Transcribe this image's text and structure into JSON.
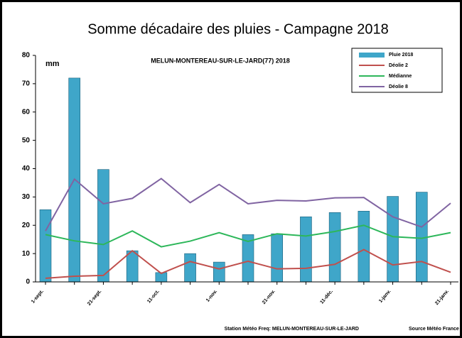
{
  "chart_data": {
    "type": "bar",
    "title": "Somme décadaire des pluies - Campagne 2018",
    "subtitle": "MELUN-MONTEREAU-SUR-LE-JARD(77) 2018",
    "y_unit": "mm",
    "footer_station": "Station Météo Freq: MELUN-MONTEREAU-SUR-LE-JARD",
    "footer_source": "Source Météo France",
    "categories": [
      "1-sept.",
      null,
      "21-sept.",
      null,
      "11-oct.",
      null,
      "1-nov.",
      null,
      "21-nov.",
      null,
      "11-déc.",
      null,
      "1-janv.",
      null,
      "21-janv."
    ],
    "ylim": [
      0,
      80
    ],
    "yticks": [
      0,
      10,
      20,
      30,
      40,
      50,
      60,
      70,
      80
    ],
    "legend": "top-right",
    "series": [
      {
        "name": "Pluie 2018",
        "type": "bar",
        "color": "#3fa6c9",
        "values": [
          25.5,
          72,
          39.7,
          11,
          3.3,
          10,
          7,
          16.7,
          17,
          23,
          24.5,
          25,
          30.2,
          31.7,
          null
        ]
      },
      {
        "name": "Déolie 2",
        "type": "line",
        "color": "#c0504d",
        "values": [
          1.3,
          2,
          2.3,
          11,
          3,
          7.2,
          4.6,
          7.3,
          4.6,
          4.8,
          6.2,
          11.4,
          6,
          7.2,
          3.4
        ]
      },
      {
        "name": "Médianne",
        "type": "line",
        "color": "#2db75a",
        "values": [
          16.7,
          14.5,
          13.2,
          18,
          12.4,
          14.4,
          17.4,
          14.3,
          17,
          16.2,
          17.8,
          20,
          16,
          15.4,
          17.4
        ]
      },
      {
        "name": "Déolie 8",
        "type": "line",
        "color": "#8064a2",
        "values": [
          18,
          36.3,
          27.6,
          29.5,
          36.5,
          28,
          34.4,
          27.6,
          28.8,
          28.6,
          29.7,
          29.8,
          23,
          19.4,
          27.8
        ]
      }
    ]
  }
}
